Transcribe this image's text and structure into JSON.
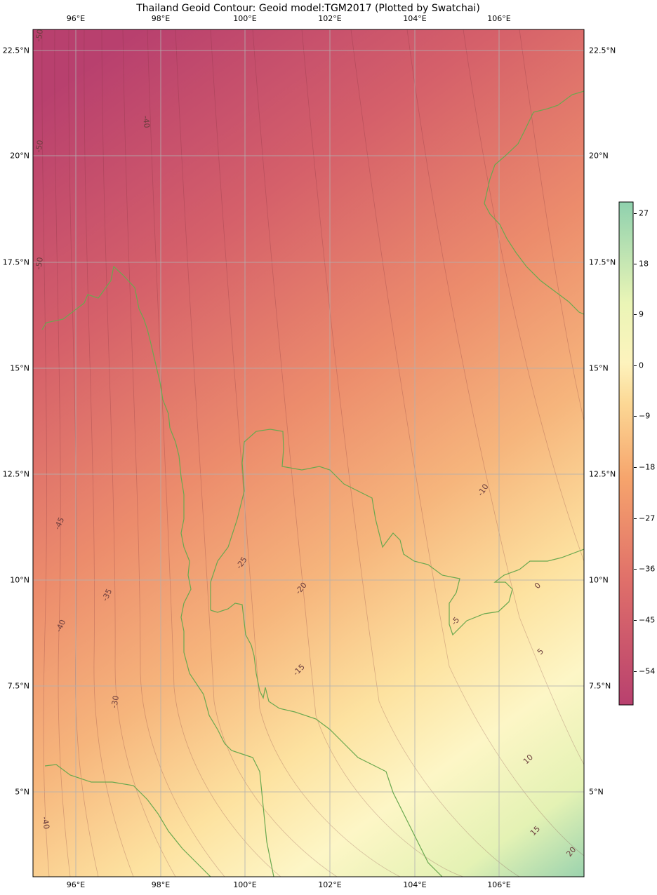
{
  "title": "Thailand Geoid Contour: Geoid model:TGM2017 (Plotted by Swatchai)",
  "map": {
    "lon_range": [
      95,
      108
    ],
    "lat_range": [
      2,
      23
    ],
    "lon_ticks": [
      "96°E",
      "98°E",
      "100°E",
      "102°E",
      "104°E",
      "106°E"
    ],
    "lat_ticks": [
      "22.5°N",
      "20°N",
      "17.5°N",
      "15°N",
      "12.5°N",
      "10°N",
      "7.5°N",
      "5°N"
    ],
    "grid": true,
    "colors": {
      "low": "#b8406e",
      "mid": "#f4a86a",
      "zero": "#fdf3bd",
      "high": "#8fd1ae",
      "coast": "#6aa84f"
    }
  },
  "contour_labels": [
    "-50",
    "-50",
    "-50",
    "-40",
    "-45",
    "-35",
    "-40",
    "-30",
    "-25",
    "-20",
    "-15",
    "-10",
    "-5",
    "0",
    "5",
    "10",
    "15",
    "20",
    "-40"
  ],
  "colorbar": {
    "min": -60,
    "max": 30,
    "ticks": [
      "27",
      "18",
      "9",
      "0",
      "−9",
      "−18",
      "−27",
      "−36",
      "−45",
      "−54"
    ]
  }
}
